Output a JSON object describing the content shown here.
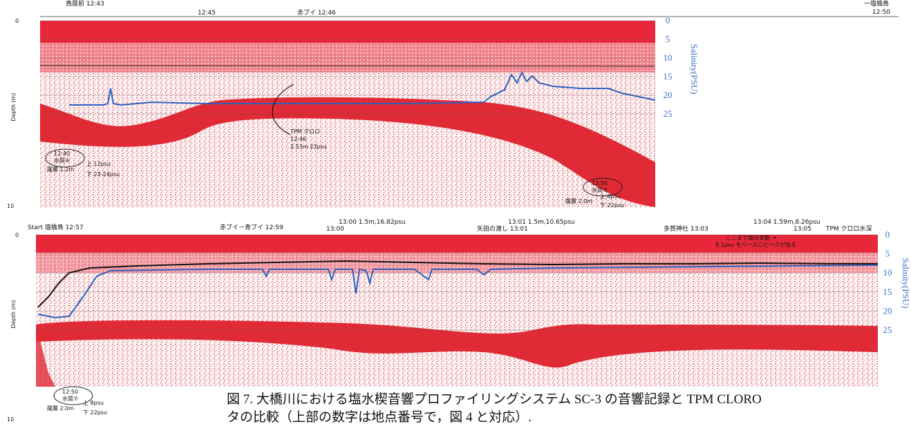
{
  "top_panel": {
    "depth_axis_label": "Depth (m)",
    "depth_ticks": [
      0,
      10
    ],
    "salinity_axis_label": "Salinity(PSU)",
    "salinity_ticks": [
      0,
      5,
      10,
      15,
      20,
      25
    ],
    "header_labels": [
      "鳥居前 12:43",
      "12:45",
      "赤ブイ 12:46",
      "一塩橋島",
      "12:50"
    ],
    "annotations": [
      "TPM クロロ",
      "12:46",
      "2.53m 23psu",
      "12:40",
      "水質⑥",
      "躍層 1.2m",
      "上 12psu",
      "下 23-24psu",
      "12:50",
      "水質⑦",
      "躍層 2.0m",
      "上 8psu",
      "下 22psu"
    ]
  },
  "bottom_panel": {
    "depth_axis_label": "Depth (m)",
    "depth_ticks": [
      0,
      10
    ],
    "salinity_axis_label": "Salinity(PSU)",
    "salinity_ticks": [
      0,
      5,
      10,
      15,
      20,
      25
    ],
    "header_labels": [
      "Start 塩橋島 12:57",
      "赤ブイ－青ブイ 12:59",
      "13:00 1.5m,16.82psu",
      "13:00",
      "13:01 1.5m,10.65psu",
      "矢田の渡し 13:01",
      "多賀神社 13:03",
      "13:04 1.59m,8.26psu",
      "13:05",
      "TPM クロロ水深"
    ],
    "annotations": [
      "ここまで塩分変動 →",
      "8.1psu をベースにピークが出る",
      "12:50",
      "水質⑦",
      "躍層 2.0m",
      "上 8psu",
      "下 22psu"
    ]
  },
  "caption": {
    "line1": "図 7. 大橋川における塩水楔音響プロファイリングシステム SC-3 の音響記録と TPM CLORO",
    "line2": "タの比較（上部の数字は地点番号で，図 4 と対応）."
  }
}
